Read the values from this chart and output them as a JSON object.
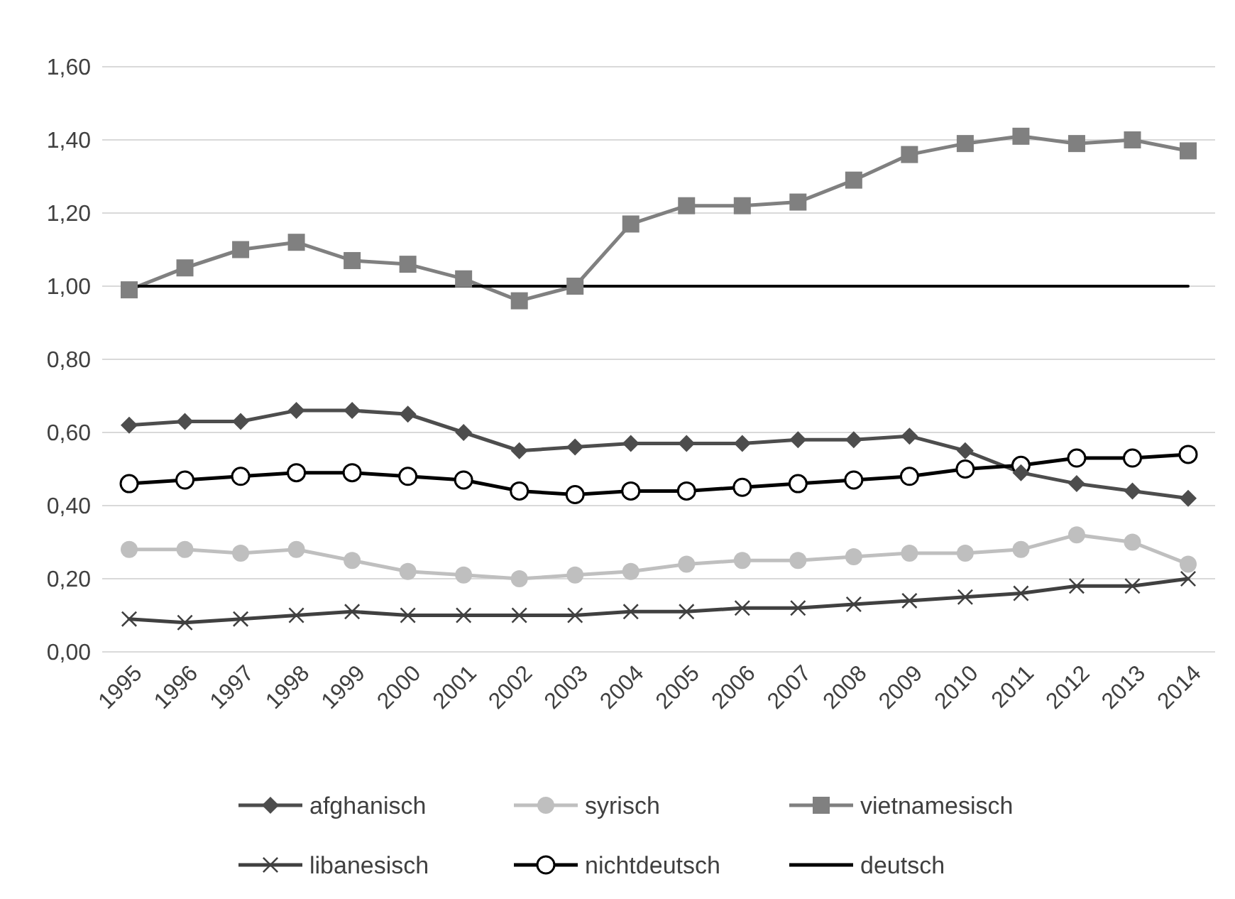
{
  "chart_data": {
    "type": "line",
    "categories": [
      "1995",
      "1996",
      "1997",
      "1998",
      "1999",
      "2000",
      "2001",
      "2002",
      "2003",
      "2004",
      "2005",
      "2006",
      "2007",
      "2008",
      "2009",
      "2010",
      "2011",
      "2012",
      "2013",
      "2014"
    ],
    "ylim": [
      0,
      1.6
    ],
    "yticks": [
      {
        "value": 0,
        "label": "0,00"
      },
      {
        "value": 0.2,
        "label": "0,20"
      },
      {
        "value": 0.4,
        "label": "0,40"
      },
      {
        "value": 0.6,
        "label": "0,60"
      },
      {
        "value": 0.8,
        "label": "0,80"
      },
      {
        "value": 1,
        "label": "1,00"
      },
      {
        "value": 1.2,
        "label": "1,20"
      },
      {
        "value": 1.4,
        "label": "1,40"
      },
      {
        "value": 1.6,
        "label": "1,60"
      }
    ],
    "grid": "y",
    "legend": "bottom",
    "series": [
      {
        "name": "afghanisch",
        "color": "#4d4d4d",
        "marker": "diamond",
        "values": [
          0.62,
          0.63,
          0.63,
          0.66,
          0.66,
          0.65,
          0.6,
          0.55,
          0.56,
          0.57,
          0.57,
          0.57,
          0.58,
          0.58,
          0.59,
          0.55,
          0.49,
          0.46,
          0.44,
          0.42
        ]
      },
      {
        "name": "syrisch",
        "color": "#bfbfbf",
        "marker": "circle",
        "values": [
          0.28,
          0.28,
          0.27,
          0.28,
          0.25,
          0.22,
          0.21,
          0.2,
          0.21,
          0.22,
          0.24,
          0.25,
          0.25,
          0.26,
          0.27,
          0.27,
          0.28,
          0.32,
          0.3,
          0.24
        ]
      },
      {
        "name": "vietnamesisch",
        "color": "#808080",
        "marker": "square",
        "values": [
          0.99,
          1.05,
          1.1,
          1.12,
          1.07,
          1.06,
          1.02,
          0.96,
          1.0,
          1.17,
          1.22,
          1.22,
          1.23,
          1.29,
          1.36,
          1.39,
          1.41,
          1.39,
          1.4,
          1.37
        ]
      },
      {
        "name": "libanesisch",
        "color": "#404040",
        "marker": "cross",
        "values": [
          0.09,
          0.08,
          0.09,
          0.1,
          0.11,
          0.1,
          0.1,
          0.1,
          0.1,
          0.11,
          0.11,
          0.12,
          0.12,
          0.13,
          0.14,
          0.15,
          0.16,
          0.18,
          0.18,
          0.2
        ]
      },
      {
        "name": "nichtdeutsch",
        "color": "#000000",
        "marker": "circle",
        "colors": [
          "#ffffff",
          "#ffffff",
          "#ffffff",
          "#ffffff",
          "#ffffff",
          "#ffffff",
          "#ffffff",
          "#ffffff",
          "#ffffff",
          "#ffffff",
          "#ffffff",
          "#ffffff",
          "#ffffff",
          "#ffffff",
          "#ffffff",
          "#ffffff",
          "#ffffff",
          "#ffffff",
          "#ffffff",
          "#ffffff"
        ],
        "values": [
          0.46,
          0.47,
          0.48,
          0.49,
          0.49,
          0.48,
          0.47,
          0.44,
          0.43,
          0.44,
          0.44,
          0.45,
          0.46,
          0.47,
          0.48,
          0.5,
          0.51,
          0.53,
          0.53,
          0.54
        ]
      },
      {
        "name": "deutsch",
        "color": "#000000",
        "marker": "none",
        "values": [
          1,
          1,
          1,
          1,
          1,
          1,
          1,
          1,
          1,
          1,
          1,
          1,
          1,
          1,
          1,
          1,
          1,
          1,
          1,
          1
        ]
      }
    ]
  }
}
